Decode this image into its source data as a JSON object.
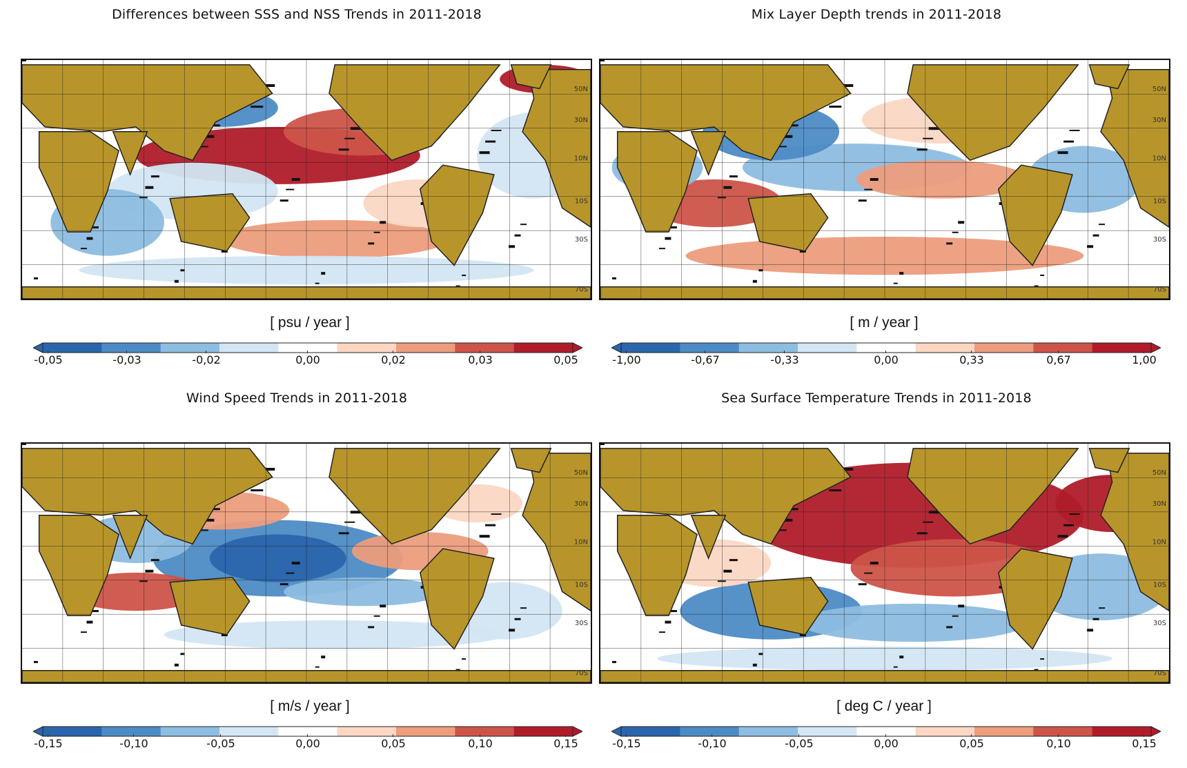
{
  "figure": {
    "panels": [
      {
        "id": "sss",
        "title": "Differences between SSS and NSS Trends in 2011-2018",
        "unit": "[ psu / year ]",
        "ticks": [
          "-0,05",
          "-0,03",
          "-0,02",
          "0,00",
          "0,02",
          "0,03",
          "0,05"
        ]
      },
      {
        "id": "mld",
        "title": "Mix Layer Depth trends in 2011-2018",
        "unit": "[ m / year ]",
        "ticks": [
          "-1,00",
          "-0,67",
          "-0,33",
          "0,00",
          "0,33",
          "0,67",
          "1,00"
        ]
      },
      {
        "id": "wind",
        "title": "Wind Speed Trends in 2011-2018",
        "unit": "[ m/s / year ]",
        "ticks": [
          "-0,15",
          "-0,10",
          "-0,05",
          "0,00",
          "0,05",
          "0,10",
          "0,15"
        ]
      },
      {
        "id": "sst",
        "title": "Sea Surface Temperature Trends in 2011-2018",
        "unit": "[ deg C / year ]",
        "ticks": [
          "-0,15",
          "-0,10",
          "-0,05",
          "0,00",
          "0,05",
          "0,10",
          "0,15"
        ]
      }
    ],
    "lat_labels": [
      "50N",
      "30N",
      "10N",
      "10S",
      "30S",
      "70S"
    ],
    "colors": {
      "land": "#b8952a",
      "scale": [
        "#2b65ac",
        "#4d8bc5",
        "#8dbde0",
        "#d3e6f3",
        "#ffffff",
        "#fbd7c4",
        "#ec9d7d",
        "#cd5449",
        "#b01c2a"
      ]
    }
  }
}
